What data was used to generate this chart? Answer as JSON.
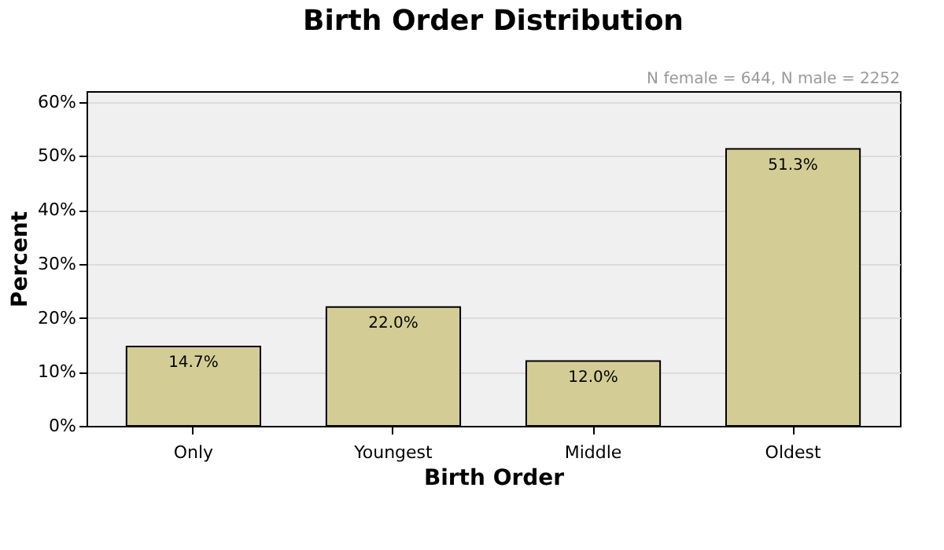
{
  "chart_data": {
    "type": "bar",
    "title": "Birth Order Distribution",
    "xlabel": "Birth Order",
    "ylabel": "Percent",
    "categories": [
      "Only",
      "Youngest",
      "Middle",
      "Oldest"
    ],
    "values": [
      14.7,
      22.0,
      12.0,
      51.3
    ],
    "value_labels": [
      "14.7%",
      "22.0%",
      "12.0%",
      "51.3%"
    ],
    "color": "#d3cd95",
    "ylim": [
      0,
      62
    ],
    "yticks": [
      {
        "value": 0,
        "label": "0%"
      },
      {
        "value": 10,
        "label": "10%"
      },
      {
        "value": 20,
        "label": "20%"
      },
      {
        "value": 30,
        "label": "30%"
      },
      {
        "value": 40,
        "label": "40%"
      },
      {
        "value": 50,
        "label": "50%"
      },
      {
        "value": 60,
        "label": "60%"
      }
    ],
    "grid": "y",
    "annotations": [
      "N female = 644, N male = 2252"
    ]
  }
}
